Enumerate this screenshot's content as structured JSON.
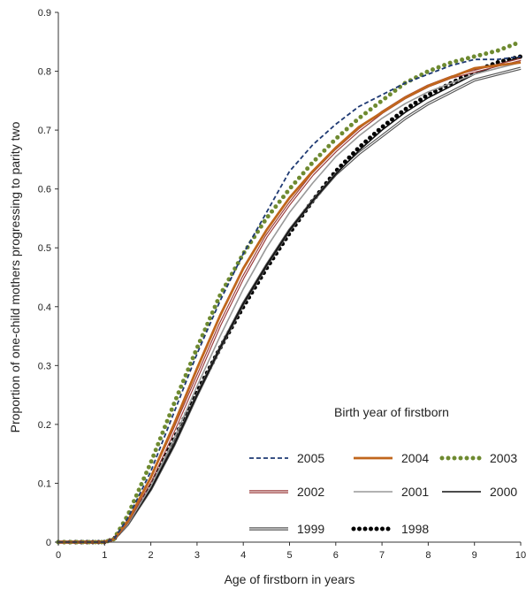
{
  "chart_data": {
    "type": "line",
    "title": "",
    "xlabel": "Age of firstborn in years",
    "ylabel": "Proportion of one-child mothers progressing to parity two",
    "xlim": [
      0,
      10
    ],
    "ylim": [
      0,
      0.9
    ],
    "x_ticks": [
      "0",
      "1",
      "2",
      "3",
      "4",
      "5",
      "6",
      "7",
      "8",
      "9",
      "10"
    ],
    "y_ticks": [
      "0",
      "0.1",
      "0.2",
      "0.3",
      "0.4",
      "0.5",
      "0.6",
      "0.7",
      "0.8",
      "0.9"
    ],
    "grid": false,
    "legend_title": "Birth year of firstborn",
    "legend_position": "bottom-right",
    "series": [
      {
        "name": "2005",
        "style": "dashed",
        "color": "#1f3a73",
        "x": [
          0,
          1,
          1.2,
          1.5,
          2,
          2.5,
          3,
          3.5,
          4,
          4.5,
          5,
          5.5,
          6,
          6.5,
          7,
          7.5,
          8,
          8.5,
          9,
          9.5,
          10
        ],
        "y": [
          0,
          0,
          0.005,
          0.04,
          0.12,
          0.22,
          0.32,
          0.41,
          0.49,
          0.56,
          0.63,
          0.675,
          0.71,
          0.74,
          0.76,
          0.78,
          0.795,
          0.81,
          0.82,
          0.82,
          0.825
        ]
      },
      {
        "name": "2004",
        "style": "solid-thick",
        "color": "#c0661c",
        "x": [
          0,
          1,
          1.2,
          1.5,
          2,
          2.5,
          3,
          3.5,
          4,
          4.5,
          5,
          5.5,
          6,
          6.5,
          7,
          7.5,
          8,
          8.5,
          9,
          9.5,
          10
        ],
        "y": [
          0,
          0,
          0.005,
          0.035,
          0.11,
          0.2,
          0.295,
          0.385,
          0.465,
          0.53,
          0.585,
          0.63,
          0.67,
          0.705,
          0.73,
          0.755,
          0.775,
          0.79,
          0.805,
          0.81,
          0.815
        ]
      },
      {
        "name": "2003",
        "style": "dotted",
        "color": "#6e8a30",
        "x": [
          0,
          1,
          1.2,
          1.5,
          2,
          2.5,
          3,
          3.5,
          4,
          4.5,
          5,
          5.5,
          6,
          6.5,
          7,
          7.5,
          8,
          8.5,
          9,
          9.5,
          10
        ],
        "y": [
          0,
          0,
          0.005,
          0.045,
          0.135,
          0.235,
          0.33,
          0.42,
          0.49,
          0.55,
          0.6,
          0.645,
          0.685,
          0.72,
          0.75,
          0.78,
          0.8,
          0.815,
          0.825,
          0.835,
          0.85
        ]
      },
      {
        "name": "2002",
        "style": "double",
        "color": "#9a3a3a",
        "x": [
          0,
          1,
          1.2,
          1.5,
          2,
          2.5,
          3,
          3.5,
          4,
          4.5,
          5,
          5.5,
          6,
          6.5,
          7,
          7.5,
          8,
          8.5,
          9,
          9.5,
          10
        ],
        "y": [
          0,
          0,
          0.005,
          0.035,
          0.105,
          0.19,
          0.28,
          0.37,
          0.45,
          0.52,
          0.575,
          0.625,
          0.665,
          0.7,
          0.73,
          0.755,
          0.775,
          0.79,
          0.8,
          0.81,
          0.82
        ]
      },
      {
        "name": "2001",
        "style": "solid",
        "color": "#999999",
        "x": [
          0,
          1,
          1.2,
          1.5,
          2,
          2.5,
          3,
          3.5,
          4,
          4.5,
          5,
          5.5,
          6,
          6.5,
          7,
          7.5,
          8,
          8.5,
          9,
          9.5,
          10
        ],
        "y": [
          0,
          0,
          0.005,
          0.03,
          0.095,
          0.175,
          0.265,
          0.35,
          0.43,
          0.5,
          0.56,
          0.61,
          0.655,
          0.69,
          0.72,
          0.745,
          0.765,
          0.78,
          0.795,
          0.805,
          0.815
        ]
      },
      {
        "name": "2000",
        "style": "solid",
        "color": "#111111",
        "x": [
          0,
          1,
          1.2,
          1.5,
          2,
          2.5,
          3,
          3.5,
          4,
          4.5,
          5,
          5.5,
          6,
          6.5,
          7,
          7.5,
          8,
          8.5,
          9,
          9.5,
          10
        ],
        "y": [
          0,
          0,
          0.005,
          0.03,
          0.09,
          0.165,
          0.25,
          0.33,
          0.405,
          0.47,
          0.53,
          0.58,
          0.625,
          0.665,
          0.7,
          0.73,
          0.755,
          0.775,
          0.795,
          0.81,
          0.825
        ]
      },
      {
        "name": "1999",
        "style": "double",
        "color": "#555555",
        "x": [
          0,
          1,
          1.2,
          1.5,
          2,
          2.5,
          3,
          3.5,
          4,
          4.5,
          5,
          5.5,
          6,
          6.5,
          7,
          7.5,
          8,
          8.5,
          9,
          9.5,
          10
        ],
        "y": [
          0,
          0,
          0.005,
          0.03,
          0.09,
          0.165,
          0.25,
          0.33,
          0.405,
          0.47,
          0.53,
          0.58,
          0.625,
          0.66,
          0.69,
          0.72,
          0.745,
          0.765,
          0.785,
          0.795,
          0.805
        ]
      },
      {
        "name": "1998",
        "style": "dotted-bold",
        "color": "#000000",
        "x": [
          0,
          1,
          1.2,
          1.5,
          2,
          2.5,
          3,
          3.5,
          4,
          4.5,
          5,
          5.5,
          6,
          6.5,
          7,
          7.5,
          8,
          8.5,
          9,
          9.5,
          10
        ],
        "y": [
          0,
          0,
          0.005,
          0.035,
          0.1,
          0.175,
          0.255,
          0.33,
          0.4,
          0.465,
          0.525,
          0.58,
          0.63,
          0.67,
          0.705,
          0.735,
          0.76,
          0.78,
          0.8,
          0.815,
          0.825
        ]
      }
    ]
  }
}
